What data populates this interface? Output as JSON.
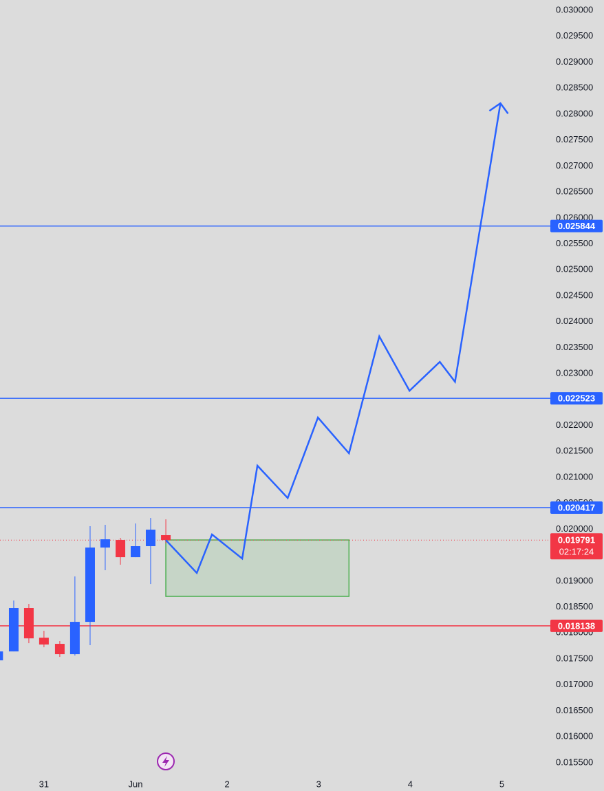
{
  "chart_data": {
    "type": "candlestick",
    "xlim": [
      -0.48,
      5.53
    ],
    "xticks": [
      {
        "value": 0,
        "label": "31"
      },
      {
        "value": 1,
        "label": "Jun"
      },
      2,
      3,
      4,
      5
    ],
    "ylim": [
      0.01522,
      0.0302
    ],
    "yticks": [
      {
        "value": 0.03,
        "label": "0.030000"
      },
      {
        "value": 0.0295,
        "label": "0.029500"
      },
      {
        "value": 0.029,
        "label": "0.029000"
      },
      {
        "value": 0.0285,
        "label": "0.028500"
      },
      {
        "value": 0.028,
        "label": "0.028000"
      },
      {
        "value": 0.0275,
        "label": "0.027500"
      },
      {
        "value": 0.027,
        "label": "0.027000"
      },
      {
        "value": 0.0265,
        "label": "0.026500"
      },
      {
        "value": 0.026,
        "label": "0.026000"
      },
      {
        "value": 0.0255,
        "label": "0.025500"
      },
      {
        "value": 0.025,
        "label": "0.025000"
      },
      {
        "value": 0.0245,
        "label": "0.024500"
      },
      {
        "value": 0.024,
        "label": "0.024000"
      },
      {
        "value": 0.0235,
        "label": "0.023500"
      },
      {
        "value": 0.023,
        "label": "0.023000"
      },
      {
        "value": 0.0225,
        "label": "0.022500"
      },
      {
        "value": 0.022,
        "label": "0.022000"
      },
      {
        "value": 0.0215,
        "label": "0.021500"
      },
      {
        "value": 0.021,
        "label": "0.021000"
      },
      {
        "value": 0.0205,
        "label": "0.020500"
      },
      {
        "value": 0.02,
        "label": "0.020000"
      },
      {
        "value": 0.0195,
        "label": "0.019500"
      },
      {
        "value": 0.019,
        "label": "0.019000"
      },
      {
        "value": 0.0185,
        "label": "0.018500"
      },
      {
        "value": 0.018,
        "label": "0.018000"
      },
      {
        "value": 0.0175,
        "label": "0.017500"
      },
      {
        "value": 0.017,
        "label": "0.017000"
      },
      {
        "value": 0.0165,
        "label": "0.016500"
      },
      {
        "value": 0.016,
        "label": "0.016000"
      },
      {
        "value": 0.0155,
        "label": "0.015500"
      }
    ],
    "up_color": "#2962ff",
    "down_color": "#f23645",
    "candles": {
      "x": [
        -0.5,
        -0.33,
        -0.165,
        0,
        0.173,
        0.338,
        0.504,
        0.669,
        0.835,
        1.0,
        1.165,
        1.331
      ],
      "open": [
        0.017473,
        0.017645,
        0.018481,
        0.01791,
        0.017791,
        0.017592,
        0.018215,
        0.019647,
        0.019793,
        0.019461,
        0.019674,
        0.019886
      ],
      "high": [
        0.017645,
        0.018626,
        0.01856,
        0.018043,
        0.017844,
        0.01909,
        0.020058,
        0.020085,
        0.019833,
        0.020111,
        0.020217,
        0.020191
      ],
      "low": [
        0.017473,
        0.017645,
        0.017804,
        0.017725,
        0.017539,
        0.017566,
        0.017765,
        0.01921,
        0.019316,
        0.019461,
        0.018944,
        0.019727
      ],
      "close": [
        0.017645,
        0.018481,
        0.017897,
        0.017778,
        0.017592,
        0.018215,
        0.019647,
        0.019806,
        0.019461,
        0.019674,
        0.019992,
        0.019791
      ]
    },
    "projection": {
      "color": "#2962ff",
      "x": [
        1.331,
        1.669,
        1.835,
        2.165,
        2.331,
        2.662,
        2.992,
        3.331,
        3.662,
        3.992,
        4.323,
        4.489,
        4.985
      ],
      "y": [
        0.019791,
        0.019157,
        0.019899,
        0.019435,
        0.021225,
        0.020601,
        0.022152,
        0.021463,
        0.023717,
        0.022669,
        0.023226,
        0.022842,
        0.02821
      ]
    },
    "zone": {
      "x": [
        1.331,
        3.331
      ],
      "y": [
        0.018706,
        0.019793
      ],
      "color": "#4caf50"
    },
    "levels": [
      {
        "value": 0.025844,
        "color": "#2962ff"
      },
      {
        "value": 0.022523,
        "color": "#2962ff"
      },
      {
        "value": 0.020417,
        "color": "#2962ff"
      },
      {
        "value": 0.018138,
        "color": "#f23645"
      }
    ],
    "last_price": {
      "value": 0.019791,
      "countdown": "02:17:24",
      "color": "#f23645"
    }
  }
}
